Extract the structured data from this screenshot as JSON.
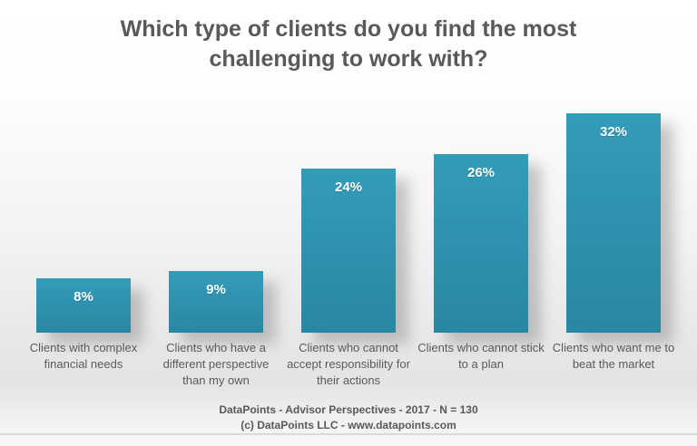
{
  "page": {
    "footer_line1": "DataPoints - Advisor Perspectives - 2017 - N = 130",
    "footer_line2": "(c) DataPoints LLC - www.datapoints.com"
  },
  "colors": {
    "bar": "#2E93B0",
    "bar_gradient_top": "#339CB9",
    "bar_gradient_bottom": "#2A87A2",
    "title_text": "#595959",
    "category_text": "#5A5A5A",
    "value_label_text": "#FFFFFF",
    "background_top": "#FFFFFF",
    "background_gray_band": "#E4E4E4"
  },
  "chart_data": {
    "type": "bar",
    "title": "Which type of clients do you find the most challenging to work with?",
    "categories": [
      "Clients with complex financial needs",
      "Clients who have a different perspective than my own",
      "Clients who cannot accept responsibility for their actions",
      "Clients who cannot stick to a plan",
      "Clients who want me to beat the market"
    ],
    "values": [
      8,
      9,
      24,
      26,
      32
    ],
    "value_labels": [
      "8%",
      "9%",
      "24%",
      "26%",
      "32%"
    ],
    "xlabel": "",
    "ylabel": "",
    "ylim": [
      0,
      32
    ],
    "grid": false,
    "legend": false,
    "bar_color": "#2E93B0",
    "value_label_position": "inside-top"
  }
}
